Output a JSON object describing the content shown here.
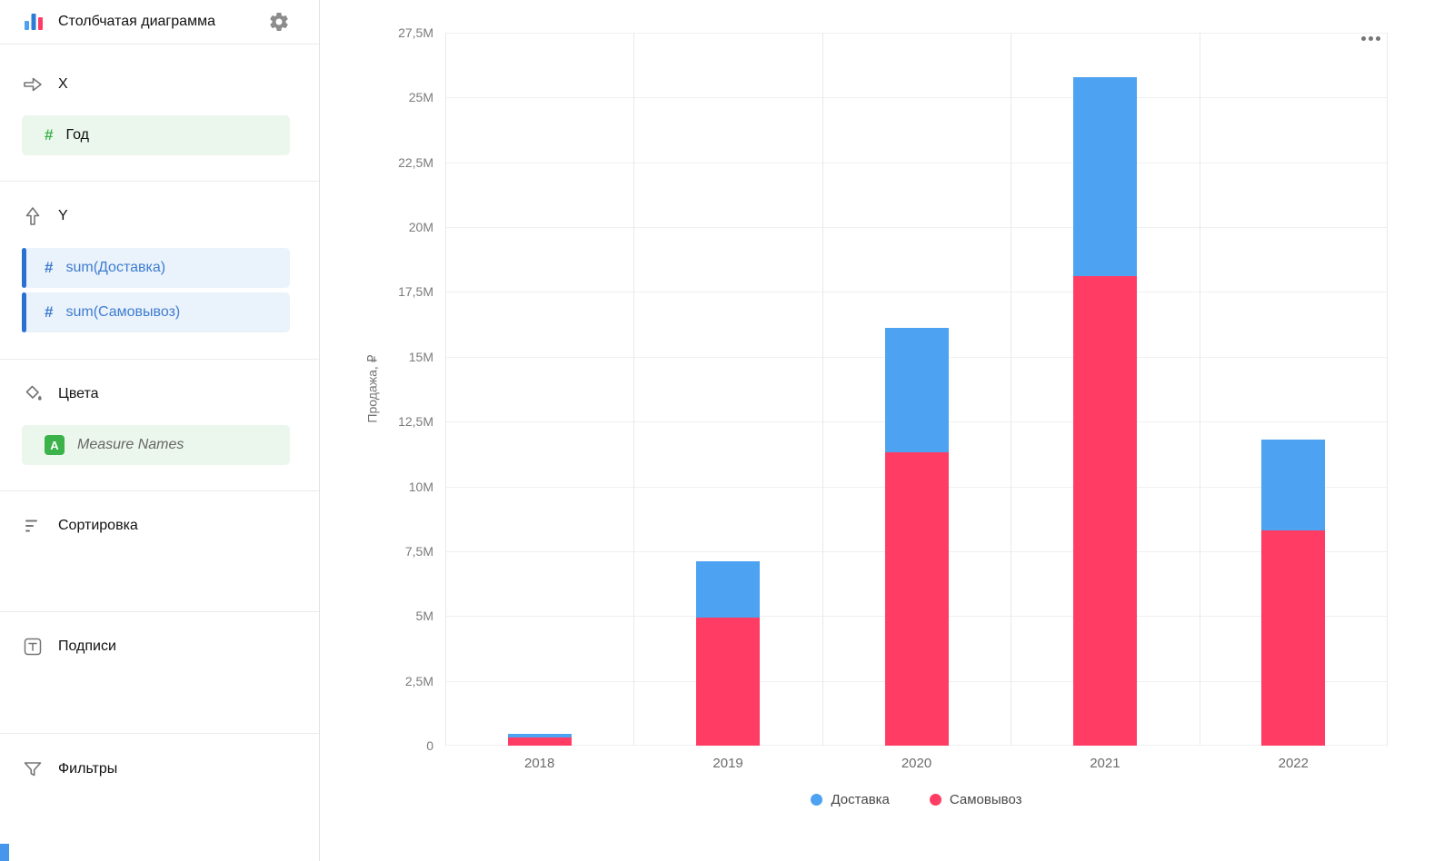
{
  "sidebar": {
    "title": "Столбчатая диаграмма",
    "x": {
      "label": "X",
      "field": "Год"
    },
    "y": {
      "label": "Y",
      "fields": [
        "sum(Доставка)",
        "sum(Самовывоз)"
      ]
    },
    "colors": {
      "label": "Цвета",
      "field": "Measure Names"
    },
    "sorting": {
      "label": "Сортировка"
    },
    "labels": {
      "label": "Подписи"
    },
    "filters": {
      "label": "Фильтры"
    }
  },
  "icons": {
    "hash": "#",
    "measure_badge": "A"
  },
  "chart_data": {
    "type": "bar",
    "stacked": true,
    "categories": [
      "2018",
      "2019",
      "2020",
      "2021",
      "2022"
    ],
    "series": [
      {
        "name": "Доставка",
        "color": "#4DA2F1",
        "values_millions": [
          0.15,
          2.15,
          4.8,
          7.7,
          3.5
        ]
      },
      {
        "name": "Самовывоз",
        "color": "#FF3D64",
        "values_millions": [
          0.3,
          4.95,
          11.3,
          18.1,
          8.3
        ]
      }
    ],
    "stack_order_bottom_first": [
      1,
      0
    ],
    "ylabel": "Продажа, ₽",
    "xlabel": "",
    "ylim_millions": [
      0,
      27.5
    ],
    "y_tick_labels": [
      "0",
      "2,5M",
      "5M",
      "7,5M",
      "10M",
      "12,5M",
      "15M",
      "17,5M",
      "20M",
      "22,5M",
      "25M",
      "27,5M"
    ],
    "y_tick_values_millions": [
      0,
      2.5,
      5,
      7.5,
      10,
      12.5,
      15,
      17.5,
      20,
      22.5,
      25,
      27.5
    ],
    "grid": true,
    "legend_position": "bottom"
  }
}
